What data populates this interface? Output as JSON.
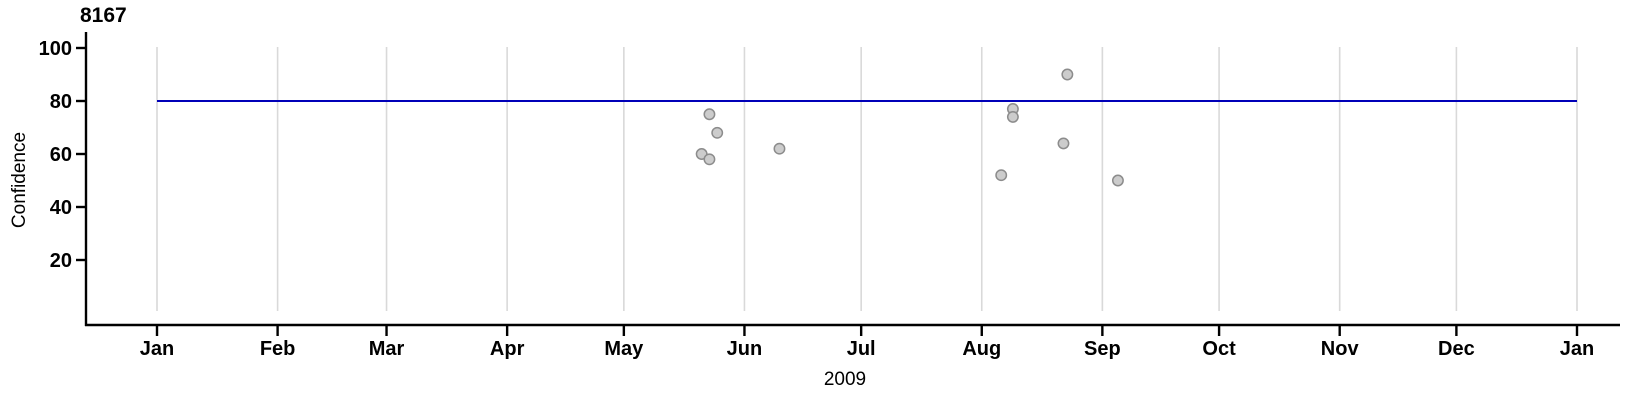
{
  "title": "8167",
  "chart_data": {
    "type": "scatter",
    "title": "8167",
    "xlabel": "2009",
    "ylabel": "Confidence",
    "x_axis": {
      "year_label": "2009",
      "tick_labels": [
        "Jan",
        "Feb",
        "Mar",
        "Apr",
        "May",
        "Jun",
        "Jul",
        "Aug",
        "Sep",
        "Oct",
        "Nov",
        "Dec",
        "Jan"
      ],
      "tick_days": [
        0,
        31,
        59,
        90,
        120,
        151,
        181,
        212,
        243,
        273,
        304,
        334,
        365
      ],
      "range_days": [
        0,
        365
      ],
      "grid": "vertical line at each month start"
    },
    "y_axis": {
      "label": "Confidence",
      "ticks": [
        20,
        40,
        60,
        80,
        100
      ],
      "range": [
        0,
        100
      ]
    },
    "reference_line": {
      "y": 80
    },
    "points": [
      {
        "date": "2009-05-20",
        "day_of_year": 140,
        "confidence": 60
      },
      {
        "date": "2009-05-22",
        "day_of_year": 142,
        "confidence": 75
      },
      {
        "date": "2009-05-22",
        "day_of_year": 142,
        "confidence": 58
      },
      {
        "date": "2009-05-24",
        "day_of_year": 144,
        "confidence": 68
      },
      {
        "date": "2009-06-09",
        "day_of_year": 160,
        "confidence": 62
      },
      {
        "date": "2009-08-05",
        "day_of_year": 217,
        "confidence": 52
      },
      {
        "date": "2009-08-08",
        "day_of_year": 220,
        "confidence": 77
      },
      {
        "date": "2009-08-08",
        "day_of_year": 220,
        "confidence": 74
      },
      {
        "date": "2009-08-21",
        "day_of_year": 233,
        "confidence": 64
      },
      {
        "date": "2009-08-22",
        "day_of_year": 234,
        "confidence": 90
      },
      {
        "date": "2009-09-04",
        "day_of_year": 247,
        "confidence": 50
      }
    ],
    "colors": {
      "reference_line": "#0000b8",
      "point_fill": "#cccccc",
      "point_stroke": "#8c8c8c",
      "gridline": "#d9d9d9",
      "axis": "#000000",
      "background": "#ffffff"
    }
  }
}
